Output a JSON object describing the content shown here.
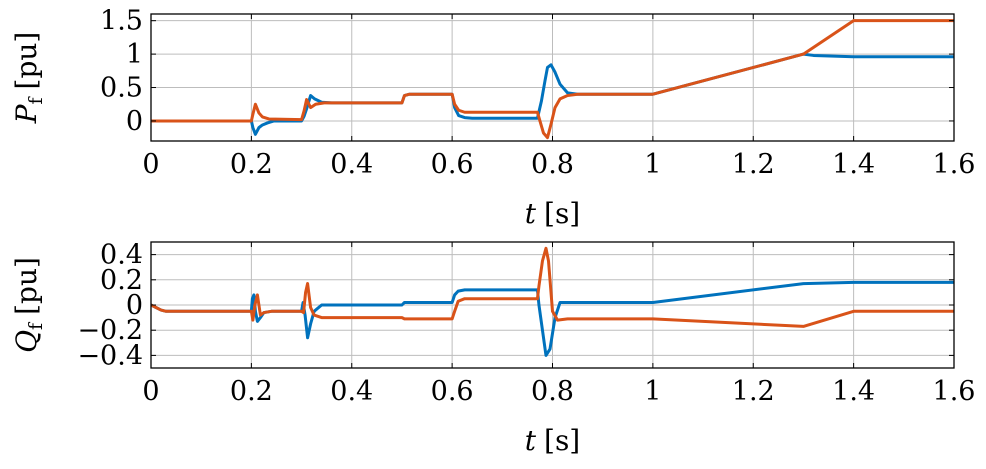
{
  "colors": {
    "series_1": "#0072BD",
    "series_2": "#D95319"
  },
  "chart_data": [
    {
      "type": "line",
      "ylabel_var": "P",
      "ylabel_sub": "f",
      "ylabel_unit": "[pu]",
      "xlabel_var": "t",
      "xlabel_unit": "[s]",
      "xlim": [
        0,
        1.6
      ],
      "ylim": [
        -0.3,
        1.6
      ],
      "xticks": [
        0,
        0.2,
        0.4,
        0.6,
        0.8,
        1,
        1.2,
        1.4,
        1.6
      ],
      "xtick_labels": [
        "0",
        "0.2",
        "0.4",
        "0.6",
        "0.8",
        "1",
        "1.2",
        "1.4",
        "1.6"
      ],
      "yticks": [
        0,
        0.5,
        1,
        1.5
      ],
      "ytick_labels": [
        "0",
        "0.5",
        "1",
        "1.5"
      ],
      "grid": true,
      "series": [
        {
          "color": "#0072BD",
          "x": [
            0,
            0.2,
            0.203,
            0.208,
            0.215,
            0.222,
            0.232,
            0.245,
            0.3,
            0.305,
            0.31,
            0.318,
            0.326,
            0.34,
            0.36,
            0.5,
            0.505,
            0.515,
            0.6,
            0.605,
            0.613,
            0.625,
            0.64,
            0.77,
            0.778,
            0.785,
            0.79,
            0.797,
            0.805,
            0.815,
            0.83,
            0.85,
            1.0,
            1.3,
            1.32,
            1.4,
            1.6
          ],
          "y": [
            0,
            0,
            -0.1,
            -0.2,
            -0.1,
            -0.06,
            -0.03,
            0,
            0,
            0.07,
            0.18,
            0.38,
            0.33,
            0.28,
            0.27,
            0.27,
            0.38,
            0.4,
            0.4,
            0.2,
            0.08,
            0.05,
            0.04,
            0.04,
            0.3,
            0.6,
            0.8,
            0.84,
            0.73,
            0.55,
            0.42,
            0.4,
            0.4,
            1.0,
            0.98,
            0.96,
            0.96
          ]
        },
        {
          "color": "#D95319",
          "x": [
            0,
            0.2,
            0.203,
            0.208,
            0.215,
            0.222,
            0.235,
            0.3,
            0.305,
            0.31,
            0.318,
            0.328,
            0.345,
            0.36,
            0.5,
            0.505,
            0.515,
            0.6,
            0.605,
            0.613,
            0.625,
            0.64,
            0.77,
            0.775,
            0.782,
            0.79,
            0.797,
            0.805,
            0.815,
            0.83,
            0.85,
            1.0,
            1.3,
            1.4,
            1.6
          ],
          "y": [
            0,
            0,
            0.1,
            0.25,
            0.12,
            0.06,
            0.03,
            0.02,
            0.15,
            0.32,
            0.2,
            0.25,
            0.27,
            0.27,
            0.27,
            0.38,
            0.4,
            0.4,
            0.25,
            0.16,
            0.13,
            0.13,
            0.13,
            0.0,
            -0.18,
            -0.25,
            -0.05,
            0.2,
            0.33,
            0.38,
            0.4,
            0.4,
            1.0,
            1.5,
            1.5
          ]
        }
      ]
    },
    {
      "type": "line",
      "ylabel_var": "Q",
      "ylabel_sub": "f",
      "ylabel_unit": "[pu]",
      "xlabel_var": "t",
      "xlabel_unit": "[s]",
      "xlim": [
        0,
        1.6
      ],
      "ylim": [
        -0.5,
        0.5
      ],
      "xticks": [
        0,
        0.2,
        0.4,
        0.6,
        0.8,
        1,
        1.2,
        1.4,
        1.6
      ],
      "xtick_labels": [
        "0",
        "0.2",
        "0.4",
        "0.6",
        "0.8",
        "1",
        "1.2",
        "1.4",
        "1.6"
      ],
      "yticks": [
        -0.4,
        -0.2,
        0,
        0.2,
        0.4
      ],
      "ytick_labels": [
        "−0.4",
        "−0.2",
        "0",
        "0.2",
        "0.4"
      ],
      "grid": true,
      "series": [
        {
          "color": "#0072BD",
          "x": [
            0,
            0.01,
            0.02,
            0.03,
            0.04,
            0.2,
            0.202,
            0.205,
            0.208,
            0.212,
            0.218,
            0.225,
            0.24,
            0.3,
            0.303,
            0.307,
            0.312,
            0.318,
            0.325,
            0.34,
            0.5,
            0.505,
            0.52,
            0.6,
            0.605,
            0.612,
            0.625,
            0.77,
            0.773,
            0.78,
            0.787,
            0.795,
            0.805,
            0.815,
            0.83,
            1.0,
            1.3,
            1.4,
            1.6
          ],
          "y": [
            0,
            -0.02,
            -0.04,
            -0.05,
            -0.05,
            -0.05,
            0.05,
            0.08,
            -0.05,
            -0.13,
            -0.1,
            -0.06,
            -0.05,
            -0.05,
            0.02,
            -0.08,
            -0.26,
            -0.15,
            -0.05,
            0,
            0,
            0.02,
            0.02,
            0.02,
            0.08,
            0.11,
            0.12,
            0.12,
            0.0,
            -0.2,
            -0.4,
            -0.35,
            -0.1,
            0.02,
            0.02,
            0.02,
            0.17,
            0.18,
            0.18
          ]
        },
        {
          "color": "#D95319",
          "x": [
            0,
            0.01,
            0.02,
            0.03,
            0.04,
            0.2,
            0.203,
            0.207,
            0.212,
            0.218,
            0.225,
            0.24,
            0.3,
            0.304,
            0.308,
            0.312,
            0.318,
            0.325,
            0.34,
            0.5,
            0.505,
            0.52,
            0.6,
            0.605,
            0.612,
            0.625,
            0.77,
            0.773,
            0.78,
            0.787,
            0.792,
            0.8,
            0.81,
            0.83,
            1.0,
            1.3,
            1.4,
            1.6
          ],
          "y": [
            0,
            -0.02,
            -0.04,
            -0.05,
            -0.05,
            -0.05,
            -0.12,
            0.0,
            0.08,
            -0.08,
            -0.06,
            -0.05,
            -0.05,
            -0.06,
            0.1,
            0.17,
            -0.02,
            -0.08,
            -0.1,
            -0.1,
            -0.11,
            -0.11,
            -0.11,
            -0.05,
            0.03,
            0.05,
            0.05,
            0.15,
            0.35,
            0.45,
            0.35,
            -0.05,
            -0.12,
            -0.11,
            -0.11,
            -0.17,
            -0.05,
            -0.05
          ]
        }
      ]
    }
  ]
}
